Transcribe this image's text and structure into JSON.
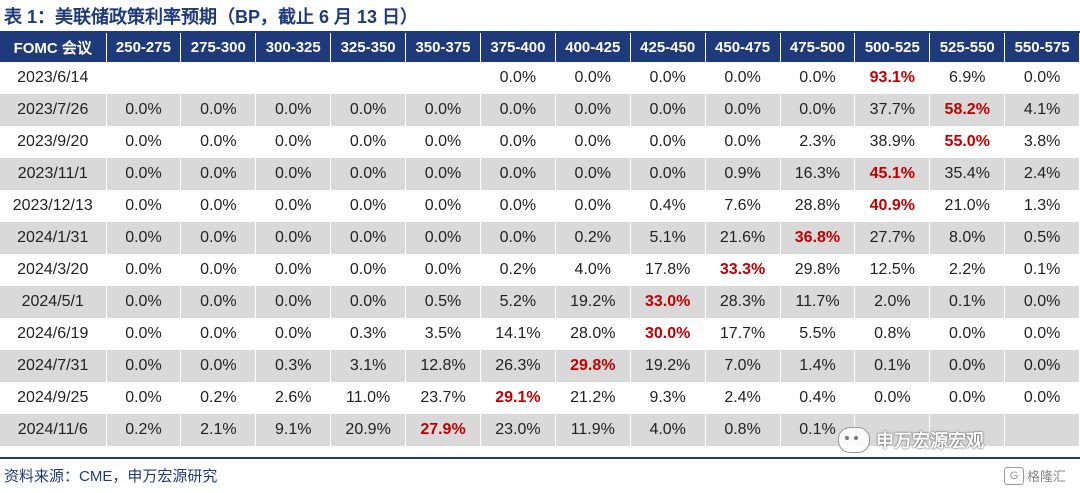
{
  "title": "表 1：美联储政策利率预期（BP，截止 6 月 13 日）",
  "headers": [
    "FOMC 会议",
    "250-275",
    "275-300",
    "300-325",
    "325-350",
    "350-375",
    "375-400",
    "400-425",
    "425-450",
    "450-475",
    "475-500",
    "500-525",
    "525-550",
    "550-575"
  ],
  "rows": [
    {
      "date": "2023/6/14",
      "values": [
        "",
        "",
        "",
        "",
        "",
        "0.0%",
        "0.0%",
        "0.0%",
        "0.0%",
        "0.0%",
        "93.1%",
        "6.9%",
        "0.0%"
      ],
      "highlight": 10
    },
    {
      "date": "2023/7/26",
      "values": [
        "0.0%",
        "0.0%",
        "0.0%",
        "0.0%",
        "0.0%",
        "0.0%",
        "0.0%",
        "0.0%",
        "0.0%",
        "0.0%",
        "37.7%",
        "58.2%",
        "4.1%"
      ],
      "highlight": 11
    },
    {
      "date": "2023/9/20",
      "values": [
        "0.0%",
        "0.0%",
        "0.0%",
        "0.0%",
        "0.0%",
        "0.0%",
        "0.0%",
        "0.0%",
        "0.0%",
        "2.3%",
        "38.9%",
        "55.0%",
        "3.8%"
      ],
      "highlight": 11
    },
    {
      "date": "2023/11/1",
      "values": [
        "0.0%",
        "0.0%",
        "0.0%",
        "0.0%",
        "0.0%",
        "0.0%",
        "0.0%",
        "0.0%",
        "0.9%",
        "16.3%",
        "45.1%",
        "35.4%",
        "2.4%"
      ],
      "highlight": 10
    },
    {
      "date": "2023/12/13",
      "values": [
        "0.0%",
        "0.0%",
        "0.0%",
        "0.0%",
        "0.0%",
        "0.0%",
        "0.0%",
        "0.4%",
        "7.6%",
        "28.8%",
        "40.9%",
        "21.0%",
        "1.3%"
      ],
      "highlight": 10
    },
    {
      "date": "2024/1/31",
      "values": [
        "0.0%",
        "0.0%",
        "0.0%",
        "0.0%",
        "0.0%",
        "0.0%",
        "0.2%",
        "5.1%",
        "21.6%",
        "36.8%",
        "27.7%",
        "8.0%",
        "0.5%"
      ],
      "highlight": 9
    },
    {
      "date": "2024/3/20",
      "values": [
        "0.0%",
        "0.0%",
        "0.0%",
        "0.0%",
        "0.0%",
        "0.2%",
        "4.0%",
        "17.8%",
        "33.3%",
        "29.8%",
        "12.5%",
        "2.2%",
        "0.1%"
      ],
      "highlight": 8
    },
    {
      "date": "2024/5/1",
      "values": [
        "0.0%",
        "0.0%",
        "0.0%",
        "0.0%",
        "0.5%",
        "5.2%",
        "19.2%",
        "33.0%",
        "28.3%",
        "11.7%",
        "2.0%",
        "0.1%",
        "0.0%"
      ],
      "highlight": 7
    },
    {
      "date": "2024/6/19",
      "values": [
        "0.0%",
        "0.0%",
        "0.0%",
        "0.3%",
        "3.5%",
        "14.1%",
        "28.0%",
        "30.0%",
        "17.7%",
        "5.5%",
        "0.8%",
        "0.0%",
        "0.0%"
      ],
      "highlight": 7
    },
    {
      "date": "2024/7/31",
      "values": [
        "0.0%",
        "0.0%",
        "0.3%",
        "3.1%",
        "12.8%",
        "26.3%",
        "29.8%",
        "19.2%",
        "7.0%",
        "1.4%",
        "0.1%",
        "0.0%",
        "0.0%"
      ],
      "highlight": 6
    },
    {
      "date": "2024/9/25",
      "values": [
        "0.0%",
        "0.2%",
        "2.6%",
        "11.0%",
        "23.7%",
        "29.1%",
        "21.2%",
        "9.3%",
        "2.4%",
        "0.4%",
        "0.0%",
        "0.0%",
        "0.0%"
      ],
      "highlight": 5
    },
    {
      "date": "2024/11/6",
      "values": [
        "0.2%",
        "2.1%",
        "9.1%",
        "20.9%",
        "27.9%",
        "23.0%",
        "11.9%",
        "4.0%",
        "0.8%",
        "0.1%",
        "",
        "",
        ""
      ],
      "highlight": 4
    }
  ],
  "source": "资料来源：CME，申万宏源研究",
  "watermark": "申万宏源宏观",
  "logo": "格隆汇",
  "colors": {
    "header_bg": "#1f3a7a",
    "highlight": "#c00000",
    "alt_row": "#d9d9d9"
  }
}
